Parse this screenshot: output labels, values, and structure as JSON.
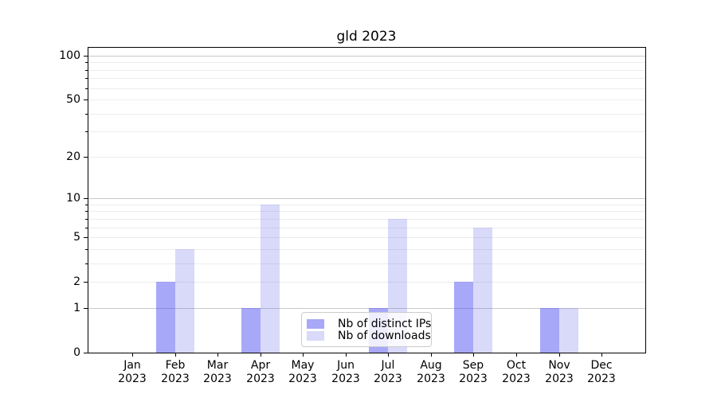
{
  "title": "gld 2023",
  "chart_data": {
    "type": "bar",
    "title": "gld 2023",
    "categories": [
      "Jan",
      "Feb",
      "Mar",
      "Apr",
      "May",
      "Jun",
      "Jul",
      "Aug",
      "Sep",
      "Oct",
      "Nov",
      "Dec"
    ],
    "year": "2023",
    "series": [
      {
        "name": "Nb of distinct IPs",
        "values": [
          0,
          2,
          0,
          1,
          0,
          0,
          1,
          0,
          2,
          0,
          1,
          0
        ],
        "color": "#a8a8f8",
        "fill": "rgba(81,81,241,0.5)"
      },
      {
        "name": "Nb of downloads",
        "values": [
          0,
          4,
          0,
          9,
          0,
          0,
          7,
          0,
          6,
          0,
          1,
          0
        ],
        "color": "#d9d9f9",
        "fill": "rgba(103,103,235,0.25)"
      }
    ],
    "yscale": "log1p",
    "ylim": [
      0,
      115
    ],
    "ytick_labels": [
      0,
      1,
      2,
      5,
      10,
      20,
      50,
      100
    ],
    "major_gridlines": [
      1,
      10,
      100
    ],
    "minor_gridlines": [
      2,
      3,
      4,
      5,
      6,
      7,
      8,
      9,
      20,
      30,
      40,
      50,
      60,
      70,
      80,
      90
    ],
    "grid": true,
    "legend_position": "lower center inside plot",
    "colors": {
      "grid_major": "#c9c9c9",
      "grid_minor": "#ececec",
      "spine": "#000000",
      "legend_border": "#cccccc",
      "text": "#000000"
    }
  }
}
